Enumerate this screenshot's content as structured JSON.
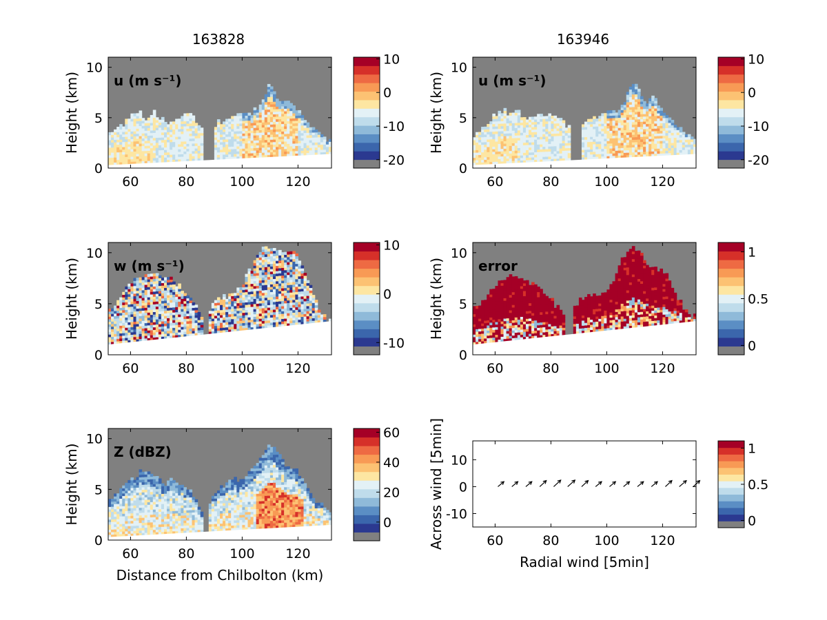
{
  "figure": {
    "col_titles": [
      "163828",
      "163946"
    ],
    "colors": {
      "missing": "#808080",
      "palette": [
        "#2b3990",
        "#3b66ac",
        "#5b8ec4",
        "#8fbad9",
        "#bfdceb",
        "#e3f1f6",
        "#fde6a2",
        "#fcc273",
        "#f89a55",
        "#ee6a43",
        "#d63029",
        "#a50026"
      ],
      "ground": "#ffffff"
    }
  },
  "chart_data": [
    {
      "type": "heatmap",
      "panel_label": "u (m s⁻¹)",
      "column_title": "163828",
      "xlabel": "",
      "ylabel": "Height (km)",
      "xlim": [
        52,
        132
      ],
      "ylim": [
        0,
        11
      ],
      "xticks": [
        "60",
        "80",
        "100",
        "120"
      ],
      "yticks": [
        "0",
        "5",
        "10"
      ],
      "colorbar_ticks": [
        "10",
        "0",
        "-10",
        "-20"
      ],
      "colorbar_range": [
        -22.5,
        10.5
      ],
      "echo_tops": [
        [
          53,
          3.3
        ],
        [
          57,
          4.2
        ],
        [
          60,
          5.2
        ],
        [
          63,
          5.6
        ],
        [
          66,
          4.8
        ],
        [
          68,
          5.5
        ],
        [
          70,
          4.8
        ],
        [
          73,
          4.4
        ],
        [
          75,
          4.8
        ],
        [
          78,
          4.8
        ],
        [
          81,
          5.3
        ],
        [
          84,
          4.5
        ],
        [
          86,
          3.8
        ],
        [
          90,
          4.2
        ],
        [
          94,
          4.8
        ],
        [
          97,
          5.0
        ],
        [
          100,
          5.3
        ],
        [
          104,
          5.3
        ],
        [
          107,
          6.5
        ],
        [
          110,
          8.5
        ],
        [
          112,
          7.2
        ],
        [
          114,
          6.4
        ],
        [
          117,
          6.7
        ],
        [
          120,
          5.4
        ],
        [
          123,
          4.5
        ],
        [
          126,
          3.6
        ],
        [
          129,
          3.1
        ],
        [
          132,
          2.6
        ]
      ],
      "gaps": [
        [
          86,
          90
        ]
      ],
      "ground_height": [
        0.3,
        1.4
      ]
    },
    {
      "type": "heatmap",
      "panel_label": "u (m s⁻¹)",
      "column_title": "163946",
      "xlabel": "",
      "ylabel": "Height (km)",
      "xlim": [
        52,
        132
      ],
      "ylim": [
        0,
        11
      ],
      "xticks": [
        "60",
        "80",
        "100",
        "120"
      ],
      "yticks": [
        "0",
        "5",
        "10"
      ],
      "colorbar_ticks": [
        "10",
        "0",
        "-10",
        "-20"
      ],
      "colorbar_range": [
        -22.5,
        10.5
      ],
      "echo_tops": [
        [
          53,
          3.3
        ],
        [
          57,
          4.2
        ],
        [
          60,
          5.2
        ],
        [
          63,
          5.6
        ],
        [
          66,
          5.2
        ],
        [
          68,
          5.6
        ],
        [
          70,
          5.0
        ],
        [
          73,
          4.6
        ],
        [
          75,
          5.0
        ],
        [
          78,
          5.0
        ],
        [
          81,
          5.3
        ],
        [
          84,
          4.6
        ],
        [
          86,
          3.8
        ],
        [
          90,
          4.2
        ],
        [
          94,
          4.8
        ],
        [
          97,
          5.0
        ],
        [
          100,
          5.3
        ],
        [
          104,
          5.5
        ],
        [
          107,
          6.8
        ],
        [
          110,
          8.7
        ],
        [
          112,
          7.4
        ],
        [
          114,
          6.6
        ],
        [
          117,
          6.8
        ],
        [
          120,
          5.6
        ],
        [
          123,
          4.8
        ],
        [
          126,
          3.8
        ],
        [
          129,
          3.2
        ],
        [
          132,
          2.8
        ]
      ],
      "gaps": [
        [
          87,
          91
        ]
      ],
      "ground_height": [
        0.3,
        1.4
      ]
    },
    {
      "type": "heatmap",
      "panel_label": "w (m s⁻¹)",
      "column_title": "",
      "xlabel": "",
      "ylabel": "Height (km)",
      "xlim": [
        52,
        132
      ],
      "ylim": [
        0,
        11
      ],
      "xticks": [
        "60",
        "80",
        "100",
        "120"
      ],
      "yticks": [
        "0",
        "5",
        "10"
      ],
      "colorbar_ticks": [
        "10",
        "0",
        "-10"
      ],
      "colorbar_range": [
        -12.5,
        10.5
      ],
      "echo_tops": [
        [
          54,
          4.5
        ],
        [
          58,
          6.2
        ],
        [
          62,
          7.4
        ],
        [
          66,
          7.8
        ],
        [
          70,
          7.7
        ],
        [
          74,
          7.4
        ],
        [
          78,
          6.5
        ],
        [
          82,
          5.4
        ],
        [
          85,
          4.0
        ],
        [
          87,
          3.2
        ],
        [
          89,
          4.5
        ],
        [
          92,
          5.5
        ],
        [
          95,
          5.8
        ],
        [
          98,
          6.0
        ],
        [
          101,
          7.2
        ],
        [
          104,
          8.7
        ],
        [
          107,
          10.3
        ],
        [
          110,
          10.6
        ],
        [
          113,
          10.0
        ],
        [
          116,
          9.6
        ],
        [
          119,
          10.0
        ],
        [
          122,
          8.5
        ],
        [
          125,
          6.5
        ],
        [
          128,
          4.2
        ],
        [
          131,
          3.3
        ]
      ],
      "gaps": [
        [
          86,
          88
        ]
      ],
      "ground_height": [
        1.0,
        3.3
      ]
    },
    {
      "type": "heatmap",
      "panel_label": "error",
      "column_title": "",
      "xlabel": "",
      "ylabel": "Height (km)",
      "xlim": [
        52,
        132
      ],
      "ylim": [
        0,
        11
      ],
      "xticks": [
        "60",
        "80",
        "100",
        "120"
      ],
      "yticks": [
        "0",
        "5",
        "10"
      ],
      "colorbar_ticks": [
        "1",
        "0.5",
        "0"
      ],
      "colorbar_range": [
        -0.1,
        1.1
      ],
      "echo_tops": [
        [
          54,
          4.5
        ],
        [
          57,
          5.6
        ],
        [
          61,
          7.0
        ],
        [
          65,
          7.5
        ],
        [
          69,
          7.3
        ],
        [
          73,
          7.0
        ],
        [
          77,
          6.0
        ],
        [
          81,
          5.0
        ],
        [
          84,
          3.8
        ],
        [
          86,
          3.0
        ],
        [
          88,
          4.5
        ],
        [
          92,
          5.5
        ],
        [
          96,
          5.7
        ],
        [
          100,
          6.0
        ],
        [
          103,
          7.6
        ],
        [
          106,
          9.5
        ],
        [
          109,
          10.6
        ],
        [
          112,
          9.8
        ],
        [
          115,
          8.2
        ],
        [
          118,
          8.4
        ],
        [
          121,
          8.0
        ],
        [
          124,
          6.3
        ],
        [
          127,
          4.8
        ],
        [
          129,
          3.7
        ]
      ],
      "gaps": [
        [
          85,
          88
        ]
      ],
      "ground_height": [
        1.0,
        3.3
      ]
    },
    {
      "type": "heatmap",
      "panel_label": "Z (dBZ)",
      "column_title": "",
      "xlabel": "Distance from Chilbolton (km)",
      "ylabel": "Height (km)",
      "xlim": [
        52,
        132
      ],
      "ylim": [
        0,
        11
      ],
      "xticks": [
        "60",
        "80",
        "100",
        "120"
      ],
      "yticks": [
        "0",
        "5",
        "10"
      ],
      "colorbar_ticks": [
        "60",
        "40",
        "20",
        "0"
      ],
      "colorbar_range": [
        -12.5,
        62.5
      ],
      "echo_tops": [
        [
          53,
          4.0
        ],
        [
          56,
          4.8
        ],
        [
          59,
          5.5
        ],
        [
          62,
          6.2
        ],
        [
          65,
          6.8
        ],
        [
          68,
          6.3
        ],
        [
          72,
          5.6
        ],
        [
          75,
          5.8
        ],
        [
          78,
          5.5
        ],
        [
          81,
          5.0
        ],
        [
          84,
          3.6
        ],
        [
          86,
          2.0
        ],
        [
          89,
          4.0
        ],
        [
          92,
          5.2
        ],
        [
          96,
          5.6
        ],
        [
          100,
          6.0
        ],
        [
          104,
          6.8
        ],
        [
          107,
          8.0
        ],
        [
          110,
          9.2
        ],
        [
          113,
          8.5
        ],
        [
          116,
          7.0
        ],
        [
          119,
          6.8
        ],
        [
          121,
          6.2
        ],
        [
          124,
          4.5
        ],
        [
          127,
          3.5
        ],
        [
          130,
          3.0
        ]
      ],
      "gaps": [
        [
          86,
          88
        ]
      ],
      "ground_height": [
        0.3,
        1.5
      ]
    },
    {
      "type": "quiver",
      "panel_label": "",
      "column_title": "",
      "xlabel": "Radial wind [5min]",
      "ylabel": "Across wind [5min]",
      "xlim": [
        52,
        132
      ],
      "ylim": [
        -15,
        17
      ],
      "xticks": [
        "60",
        "80",
        "100",
        "120"
      ],
      "yticks": [
        "10",
        "0",
        "-10"
      ],
      "colorbar_ticks": [
        "1",
        "0.5",
        "0"
      ],
      "colorbar_range": [
        -0.1,
        1.1
      ],
      "arrows": {
        "x": [
          61,
          66,
          71,
          76,
          81,
          86,
          91,
          96,
          101,
          106,
          111,
          116,
          121,
          126,
          131
        ],
        "y": [
          0,
          0,
          0,
          0,
          0,
          0,
          0,
          0,
          0,
          0,
          0,
          0,
          0,
          0,
          0
        ],
        "u": [
          2.4,
          2.4,
          2.4,
          2.6,
          2.8,
          2.9,
          2.6,
          2.4,
          2.4,
          2.4,
          2.4,
          2.4,
          2.6,
          2.8,
          2.6
        ],
        "v": [
          2.0,
          2.0,
          2.0,
          2.4,
          2.6,
          2.6,
          2.4,
          2.0,
          2.0,
          2.0,
          2.0,
          2.0,
          2.4,
          2.4,
          2.4
        ]
      }
    }
  ]
}
